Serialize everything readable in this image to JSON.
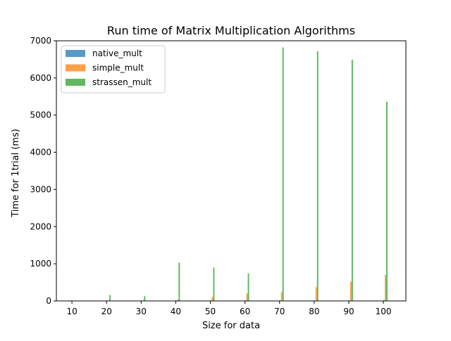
{
  "chart_data": {
    "type": "bar",
    "title": "Run time of Matrix Multiplication Algorithms",
    "xlabel": "Size for data",
    "ylabel": "Time for 1trial (ms)",
    "xlim": [
      5.5,
      106.5
    ],
    "ylim": [
      0,
      7000
    ],
    "xticks": [
      10,
      20,
      30,
      40,
      50,
      60,
      70,
      80,
      90,
      100
    ],
    "yticks": [
      0,
      1000,
      2000,
      3000,
      4000,
      5000,
      6000,
      7000
    ],
    "grid": false,
    "legend_position": "top-left",
    "bar_width": 0.4,
    "x": [
      10,
      20,
      30,
      40,
      50,
      60,
      70,
      80,
      90,
      100
    ],
    "series": [
      {
        "name": "native_mult",
        "color": "#1f77b4",
        "offset": 0.2,
        "values": [
          0,
          0,
          0,
          3,
          3,
          5,
          8,
          10,
          12,
          15
        ]
      },
      {
        "name": "simple_mult",
        "color": "#ff7f0e",
        "offset": 0.6,
        "values": [
          1,
          5,
          15,
          40,
          110,
          200,
          240,
          370,
          520,
          700
        ]
      },
      {
        "name": "strassen_mult",
        "color": "#2ca02c",
        "offset": 1.0,
        "values": [
          5,
          160,
          130,
          1030,
          900,
          740,
          6820,
          6720,
          6490,
          5360
        ]
      }
    ]
  }
}
